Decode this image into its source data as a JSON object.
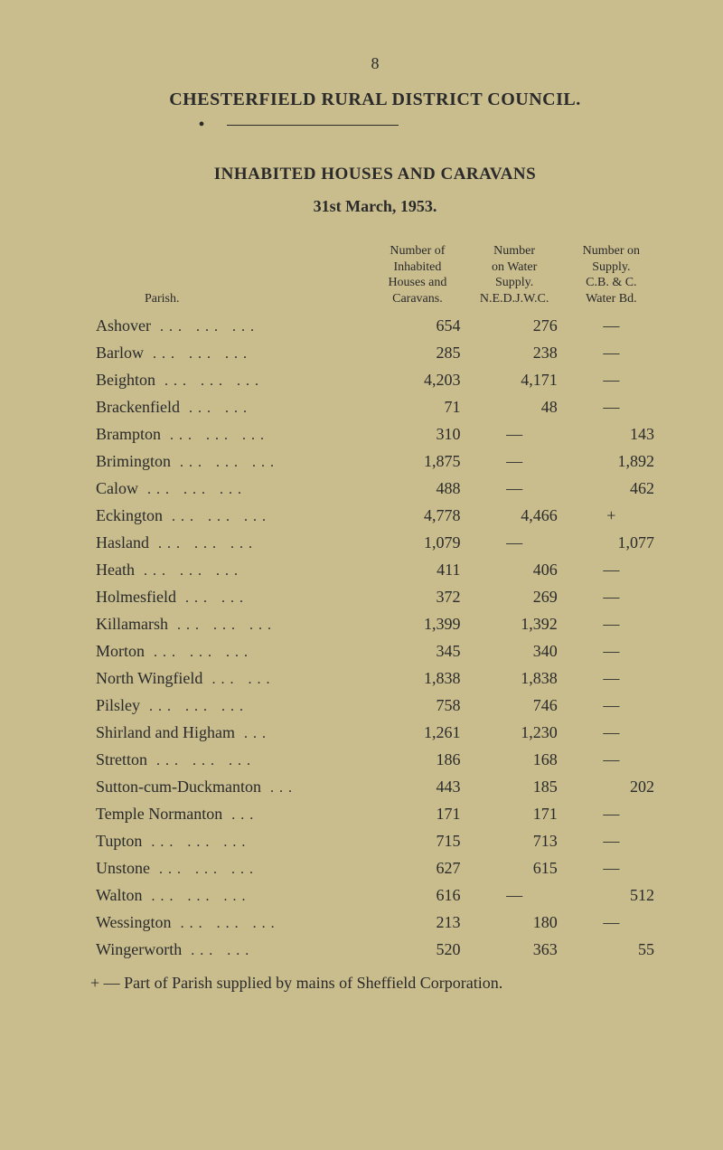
{
  "pagenum": "8",
  "title": "CHESTERFIELD RURAL DISTRICT COUNCIL.",
  "subtitle": "INHABITED HOUSES AND CARAVANS",
  "date": "31st March, 1953.",
  "headers": {
    "parish": "Parish.",
    "col1": "Number of\nInhabited\nHouses and\nCaravans.",
    "col2": "Number\non Water\nSupply.\nN.E.D.J.W.C.",
    "col3": "Number on\nSupply.\nC.B. & C.\nWater Bd."
  },
  "rows": [
    {
      "parish": "Ashover",
      "dots": "...   ...   ...",
      "c1": "654",
      "c2": "276",
      "c3": "—"
    },
    {
      "parish": "Barlow",
      "dots": "...   ...   ...",
      "c1": "285",
      "c2": "238",
      "c3": "—"
    },
    {
      "parish": "Beighton",
      "dots": "...   ...   ...",
      "c1": "4,203",
      "c2": "4,171",
      "c3": "—"
    },
    {
      "parish": "Brackenfield",
      "dots": "...   ...",
      "c1": "71",
      "c2": "48",
      "c3": "—"
    },
    {
      "parish": "Brampton",
      "dots": "...   ...   ...",
      "c1": "310",
      "c2": "—",
      "c3": "143"
    },
    {
      "parish": "Brimington",
      "dots": "...   ...   ...",
      "c1": "1,875",
      "c2": "—",
      "c3": "1,892"
    },
    {
      "parish": "Calow",
      "dots": "...   ...   ...",
      "c1": "488",
      "c2": "—",
      "c3": "462"
    },
    {
      "parish": "Eckington",
      "dots": "...   ...   ...",
      "c1": "4,778",
      "c2": "4,466",
      "c3": "+"
    },
    {
      "parish": "Hasland",
      "dots": "...   ...   ...",
      "c1": "1,079",
      "c2": "—",
      "c3": "1,077"
    },
    {
      "parish": "Heath",
      "dots": "...   ...   ...",
      "c1": "411",
      "c2": "406",
      "c3": "—"
    },
    {
      "parish": "Holmesfield",
      "dots": "...   ...",
      "c1": "372",
      "c2": "269",
      "c3": "—"
    },
    {
      "parish": "Killamarsh",
      "dots": "...   ...   ...",
      "c1": "1,399",
      "c2": "1,392",
      "c3": "—"
    },
    {
      "parish": "Morton",
      "dots": "...   ...   ...",
      "c1": "345",
      "c2": "340",
      "c3": "—"
    },
    {
      "parish": "North Wingfield",
      "dots": "...   ...",
      "c1": "1,838",
      "c2": "1,838",
      "c3": "—"
    },
    {
      "parish": "Pilsley",
      "dots": "...   ...   ...",
      "c1": "758",
      "c2": "746",
      "c3": "—"
    },
    {
      "parish": "Shirland and Higham",
      "dots": "...",
      "c1": "1,261",
      "c2": "1,230",
      "c3": "—"
    },
    {
      "parish": "Stretton",
      "dots": "...   ...   ...",
      "c1": "186",
      "c2": "168",
      "c3": "—"
    },
    {
      "parish": "Sutton-cum-Duckmanton",
      "dots": "...",
      "c1": "443",
      "c2": "185",
      "c3": "202"
    },
    {
      "parish": "Temple Normanton",
      "dots": "...",
      "c1": "171",
      "c2": "171",
      "c3": "—"
    },
    {
      "parish": "Tupton",
      "dots": "...   ...   ...",
      "c1": "715",
      "c2": "713",
      "c3": "—"
    },
    {
      "parish": "Unstone",
      "dots": "...   ...   ...",
      "c1": "627",
      "c2": "615",
      "c3": "—"
    },
    {
      "parish": "Walton",
      "dots": "...   ...   ...",
      "c1": "616",
      "c2": "—",
      "c3": "512"
    },
    {
      "parish": "Wessington",
      "dots": "...   ...   ...",
      "c1": "213",
      "c2": "180",
      "c3": "—"
    },
    {
      "parish": "Wingerworth",
      "dots": "...   ...",
      "c1": "520",
      "c2": "363",
      "c3": "55"
    }
  ],
  "footnote": "+ — Part of Parish supplied by mains of Sheffield Corporation.",
  "colors": {
    "background": "#c9bd8e",
    "text": "#2a2a2a"
  },
  "typography": {
    "body_fontsize": 18,
    "header_fontsize": 14,
    "title_fontsize": 20
  }
}
